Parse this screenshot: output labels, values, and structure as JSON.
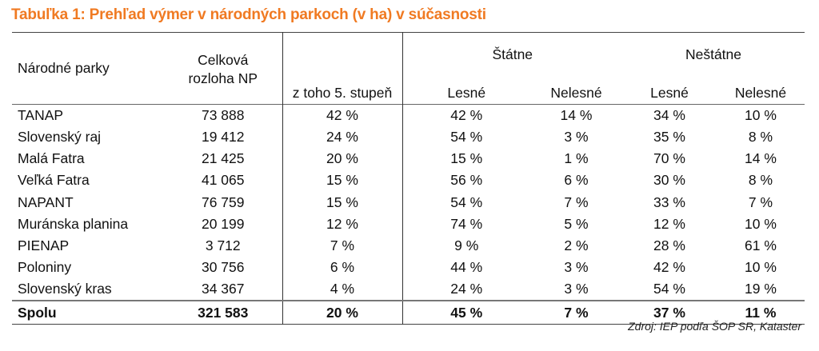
{
  "title": "Tabuľka 1: Prehľad výmer v národných parkoch (v ha) v súčasnosti",
  "headers": {
    "park": "Národné parky",
    "total_line1": "Celková",
    "total_line2": "rozloha NP",
    "grade5": "z toho 5. stupeň",
    "state": "Štátne",
    "nonstate": "Neštátne",
    "state_forest": "Lesné",
    "state_nonforest": "Nelesné",
    "nonstate_forest": "Lesné",
    "nonstate_nonforest": "Nelesné"
  },
  "rows": [
    [
      "TANAP",
      "73 888",
      "42 %",
      "42 %",
      "14 %",
      "34 %",
      "10 %"
    ],
    [
      "Slovenský raj",
      "19 412",
      "24 %",
      "54 %",
      "3 %",
      "35 %",
      "8 %"
    ],
    [
      "Malá Fatra",
      "21 425",
      "20 %",
      "15 %",
      "1 %",
      "70 %",
      "14 %"
    ],
    [
      "Veľká Fatra",
      "41 065",
      "15 %",
      "56 %",
      "6 %",
      "30 %",
      "8 %"
    ],
    [
      "NAPANT",
      "76 759",
      "15 %",
      "54 %",
      "7 %",
      "33 %",
      "7 %"
    ],
    [
      "Muránska planina",
      "20 199",
      "12 %",
      "74 %",
      "5 %",
      "12 %",
      "10 %"
    ],
    [
      "PIENAP",
      "3 712",
      "7 %",
      "9 %",
      "2 %",
      "28 %",
      "61 %"
    ],
    [
      "Poloniny",
      "30 756",
      "6 %",
      "44 %",
      "3 %",
      "42 %",
      "10 %"
    ],
    [
      "Slovenský kras",
      "34 367",
      "4 %",
      "24 %",
      "3 %",
      "54 %",
      "19 %"
    ]
  ],
  "total": [
    "Spolu",
    "321 583",
    "20 %",
    "45 %",
    "7 %",
    "37 %",
    "11 %"
  ],
  "source": "Zdroj: IEP podľa ŠOP SR, Kataster"
}
